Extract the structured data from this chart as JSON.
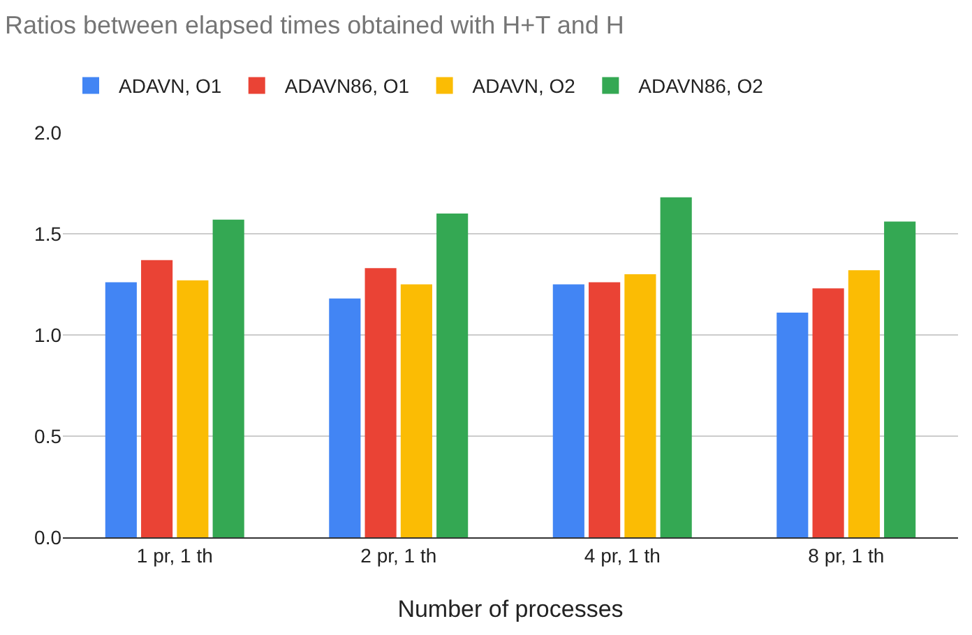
{
  "chart_data": {
    "type": "bar",
    "title": "Ratios between elapsed times obtained with H+T and H",
    "xlabel": "Number of processes",
    "categories": [
      "1 pr, 1 th",
      "2 pr, 1 th",
      "4 pr, 1 th",
      "8 pr, 1 th"
    ],
    "series": [
      {
        "name": "ADAVN, O1",
        "color": "#4285f4",
        "values": [
          1.26,
          1.18,
          1.25,
          1.11
        ]
      },
      {
        "name": "ADAVN86, O1",
        "color": "#ea4335",
        "values": [
          1.37,
          1.33,
          1.26,
          1.23
        ]
      },
      {
        "name": "ADAVN, O2",
        "color": "#fbbc04",
        "values": [
          1.27,
          1.25,
          1.3,
          1.32
        ]
      },
      {
        "name": "ADAVN86, O2",
        "color": "#34a853",
        "values": [
          1.57,
          1.6,
          1.68,
          1.56
        ]
      }
    ],
    "ylim": [
      0,
      2.0
    ],
    "yticks": [
      {
        "value": 0,
        "label": "0.0"
      },
      {
        "value": 0.5,
        "label": "0.5"
      },
      {
        "value": 1,
        "label": "1.0"
      },
      {
        "value": 1.5,
        "label": "1.5"
      },
      {
        "value": 2,
        "label": "2.0"
      }
    ],
    "grid": "y",
    "legend": "top"
  }
}
